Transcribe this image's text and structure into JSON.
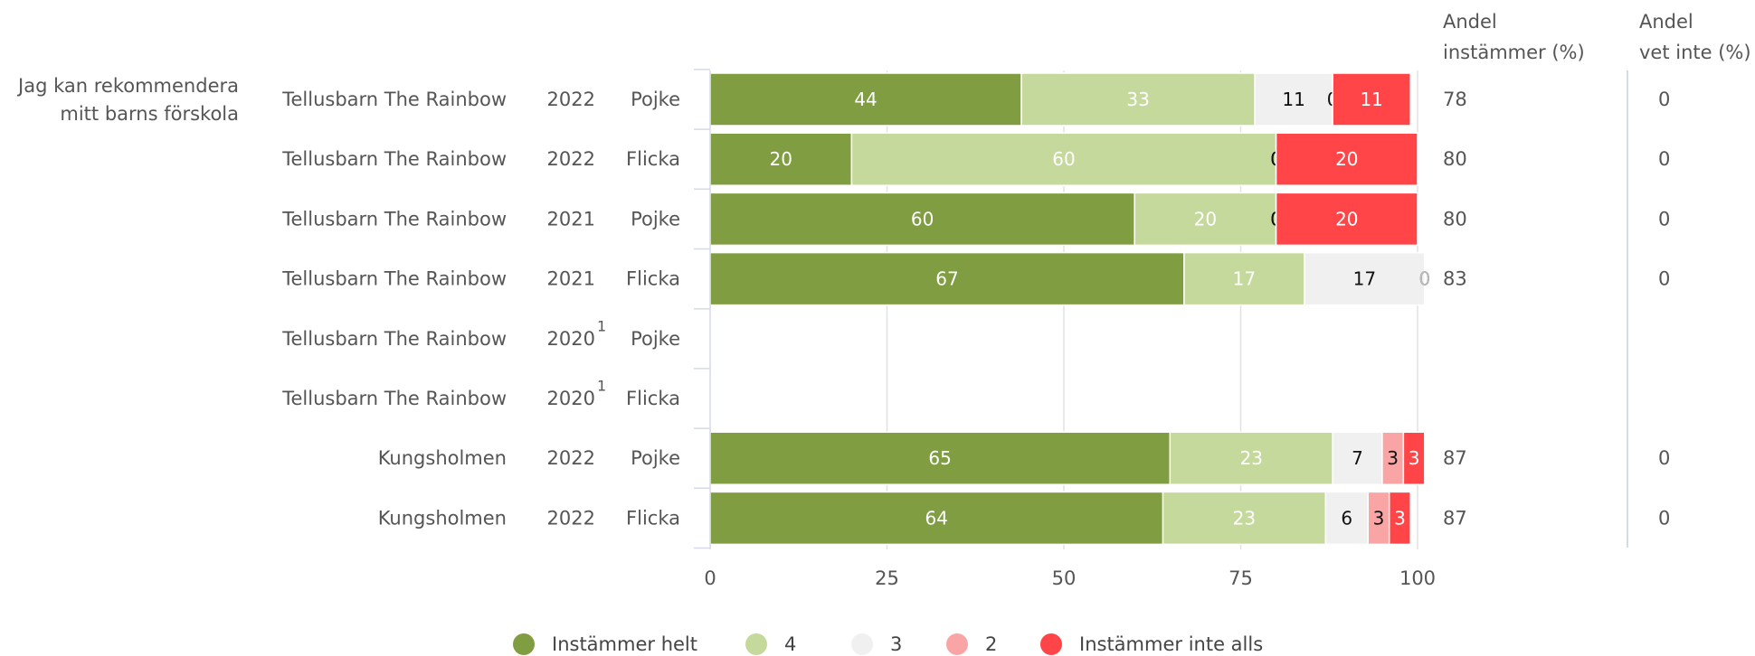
{
  "chart_data": {
    "type": "bar",
    "orientation": "horizontal",
    "stacked": true,
    "xlim": [
      0,
      100
    ],
    "xticks": [
      "0",
      "25",
      "50",
      "75",
      "100"
    ],
    "grid": true,
    "legend_position": "bottom",
    "question": [
      "Jag kan rekommendera",
      "mitt barns förskola"
    ],
    "column_headers": {
      "agree": [
        "Andel",
        "instämmer (%)"
      ],
      "dontknow": [
        "Andel",
        "vet inte (%)"
      ]
    },
    "legend": [
      {
        "name": "Instämmer helt",
        "color": "#809d42"
      },
      {
        "name": "4",
        "color": "#c5d99c"
      },
      {
        "name": "3",
        "color": "#f0f0f0"
      },
      {
        "name": "2",
        "color": "#f9a5a6"
      },
      {
        "name": "Instämmer inte alls",
        "color": "#ff4547"
      }
    ],
    "rows": [
      {
        "unit": "Tellusbarn The Rainbow",
        "year": "2022",
        "note": "",
        "gender": "Pojke",
        "values": [
          44,
          33,
          11,
          0,
          11
        ],
        "agree": "78",
        "dontknow": "0"
      },
      {
        "unit": "Tellusbarn The Rainbow",
        "year": "2022",
        "note": "",
        "gender": "Flicka",
        "values": [
          20,
          60,
          0,
          0,
          20
        ],
        "agree": "80",
        "dontknow": "0"
      },
      {
        "unit": "Tellusbarn The Rainbow",
        "year": "2021",
        "note": "",
        "gender": "Pojke",
        "values": [
          60,
          20,
          0,
          0,
          20
        ],
        "agree": "80",
        "dontknow": "0"
      },
      {
        "unit": "Tellusbarn The Rainbow",
        "year": "2021",
        "note": "",
        "gender": "Flicka",
        "values": [
          67,
          17,
          17,
          0,
          0
        ],
        "agree": "83",
        "dontknow": "0"
      },
      {
        "unit": "Tellusbarn The Rainbow",
        "year": "2020",
        "note": "1",
        "gender": "Pojke",
        "values": null,
        "agree": "",
        "dontknow": ""
      },
      {
        "unit": "Tellusbarn The Rainbow",
        "year": "2020",
        "note": "1",
        "gender": "Flicka",
        "values": null,
        "agree": "",
        "dontknow": ""
      },
      {
        "unit": "Kungsholmen",
        "year": "2022",
        "note": "",
        "gender": "Pojke",
        "values": [
          65,
          23,
          7,
          3,
          3
        ],
        "agree": "87",
        "dontknow": "0"
      },
      {
        "unit": "Kungsholmen",
        "year": "2022",
        "note": "",
        "gender": "Flicka",
        "values": [
          64,
          23,
          6,
          3,
          3
        ],
        "agree": "87",
        "dontknow": "0"
      }
    ]
  }
}
